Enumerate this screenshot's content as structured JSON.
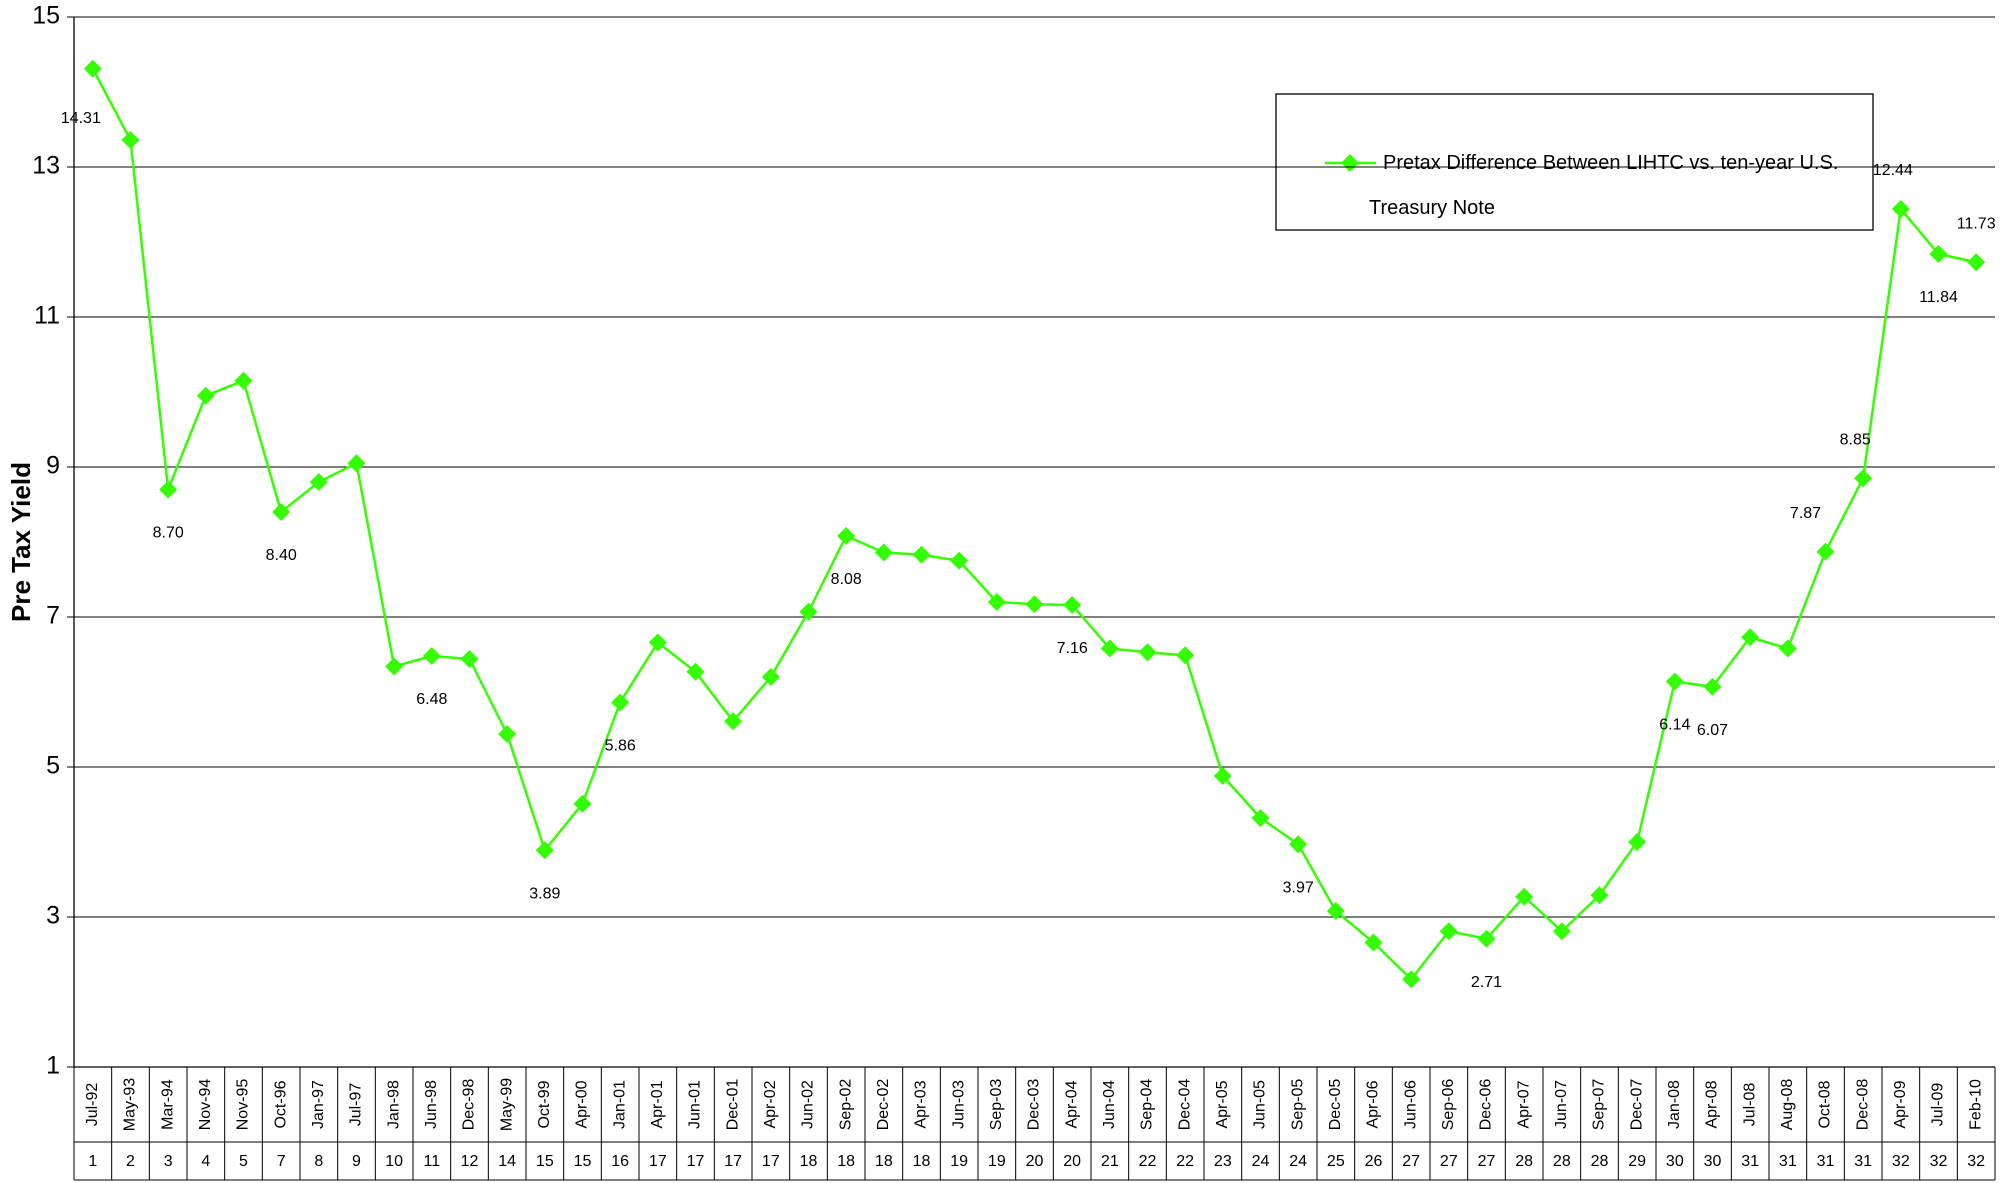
{
  "chart_data": {
    "type": "line",
    "ylabel": "Pre Tax Yield",
    "categories": [
      "Jul-92",
      "May-93",
      "Mar-94",
      "Nov-94",
      "Nov-95",
      "Oct-96",
      "Jan-97",
      "Jul-97",
      "Jan-98",
      "Jun-98",
      "Dec-98",
      "May-99",
      "Oct-99",
      "Apr-00",
      "Jan-01",
      "Apr-01",
      "Jun-01",
      "Dec-01",
      "Apr-02",
      "Jun-02",
      "Sep-02",
      "Dec-02",
      "Apr-03",
      "Jun-03",
      "Sep-03",
      "Dec-03",
      "Apr-04",
      "Jun-04",
      "Sep-04",
      "Dec-04",
      "Apr-05",
      "Jun-05",
      "Sep-05",
      "Dec-05",
      "Apr-06",
      "Jun-06",
      "Sep-06",
      "Dec-06",
      "Apr-07",
      "Jun-07",
      "Sep-07",
      "Dec-07",
      "Jan-08",
      "Apr-08",
      "Jul-08",
      "Aug-08",
      "Oct-08",
      "Dec-08",
      "Apr-09",
      "Jul-09",
      "Feb-10"
    ],
    "category_numbers": [
      1,
      2,
      3,
      4,
      5,
      7,
      8,
      9,
      10,
      11,
      12,
      14,
      15,
      15,
      16,
      17,
      17,
      17,
      17,
      18,
      18,
      18,
      18,
      19,
      19,
      20,
      20,
      21,
      22,
      22,
      23,
      24,
      24,
      25,
      26,
      27,
      27,
      27,
      28,
      28,
      28,
      29,
      30,
      30,
      31,
      31,
      31,
      31,
      32,
      32,
      32
    ],
    "series": [
      {
        "name": "Pretax Difference Between  LIHTC vs. ten-year U.S. Treasury Note",
        "color": "#33ff00",
        "values": [
          14.31,
          13.36,
          8.7,
          9.95,
          10.15,
          8.4,
          8.8,
          9.05,
          6.34,
          6.48,
          6.44,
          5.44,
          3.89,
          4.51,
          5.86,
          6.66,
          6.27,
          5.61,
          6.2,
          7.07,
          8.08,
          7.86,
          7.83,
          7.75,
          7.2,
          7.17,
          7.16,
          6.58,
          6.53,
          6.49,
          4.88,
          4.32,
          3.97,
          3.08,
          2.66,
          2.17,
          2.81,
          2.71,
          3.27,
          2.81,
          3.29,
          4.0,
          6.14,
          6.07,
          6.73,
          6.58,
          7.87,
          8.85,
          12.44,
          11.84,
          11.73
        ],
        "value_labels": [
          "14.31",
          null,
          "8.70",
          null,
          null,
          "8.40",
          null,
          null,
          null,
          "6.48",
          null,
          null,
          "3.89",
          null,
          "5.86",
          null,
          null,
          null,
          null,
          null,
          "8.08",
          null,
          null,
          null,
          null,
          null,
          "7.16",
          null,
          null,
          null,
          null,
          null,
          "3.97",
          null,
          null,
          null,
          null,
          "2.71",
          null,
          null,
          null,
          null,
          "6.14",
          "6.07",
          null,
          null,
          "7.87",
          "8.85",
          "12.44",
          "11.84",
          "11.73"
        ]
      }
    ],
    "ylim": [
      1,
      15
    ],
    "yticks": [
      1,
      3,
      5,
      7,
      9,
      11,
      13,
      15
    ],
    "grid": true,
    "legend": "upper right"
  }
}
